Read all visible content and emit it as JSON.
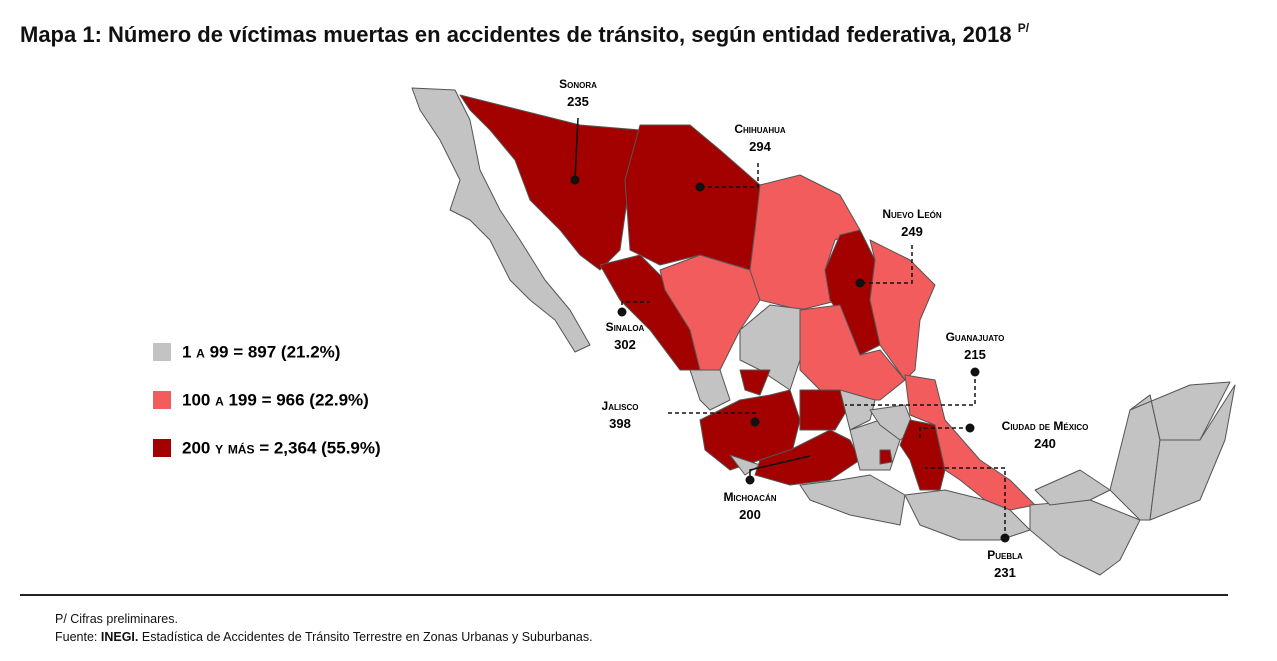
{
  "title": "Mapa 1: Número de víctimas muertas en accidentes de tránsito, según entidad federativa, 2018",
  "title_superscript": "P/",
  "legend": [
    {
      "label": "1 a 99 = 897 (21.2%)",
      "color": "#c3c3c3"
    },
    {
      "label": "100 a 199 = 966 (22.9%)",
      "color": "#f25c5c"
    },
    {
      "label": "200 y más = 2,364 (55.9%)",
      "color": "#a30000"
    }
  ],
  "callouts": [
    {
      "state": "Sonora",
      "value": 235
    },
    {
      "state": "Chihuahua",
      "value": 294
    },
    {
      "state": "Nuevo León",
      "value": 249
    },
    {
      "state": "Sinaloa",
      "value": 302
    },
    {
      "state": "Guanajuato",
      "value": 215
    },
    {
      "state": "Jalisco",
      "value": 398
    },
    {
      "state": "Ciudad de México",
      "value": 240
    },
    {
      "state": "Michoacán",
      "value": 200
    },
    {
      "state": "Puebla",
      "value": 231
    }
  ],
  "footnote": "P/ Cifras preliminares.",
  "source_label": "Fuente:",
  "source_org": "INEGI.",
  "source_text": "Estadística de Accidentes de Tránsito Terrestre en Zonas Urbanas y Suburbanas."
}
